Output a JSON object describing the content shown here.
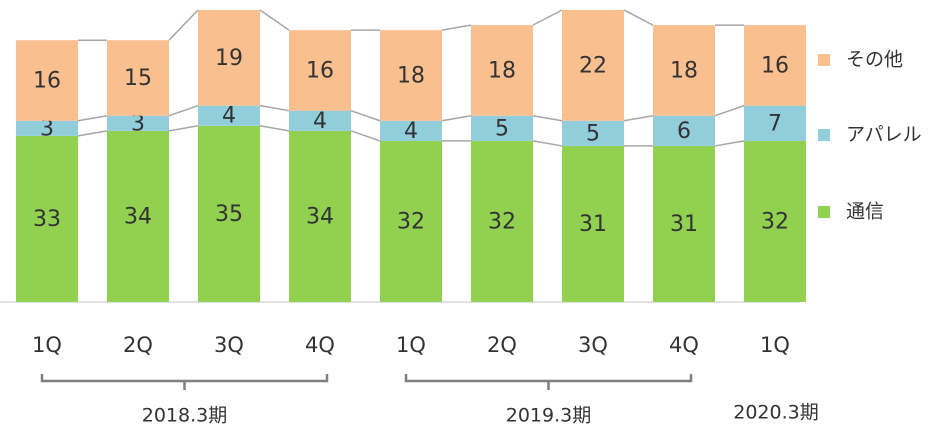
{
  "chart_data": {
    "type": "stacked_bar",
    "groups": [
      {
        "label": "2018.3期",
        "categories": [
          "1Q",
          "2Q",
          "3Q",
          "4Q"
        ]
      },
      {
        "label": "2019.3期",
        "categories": [
          "1Q",
          "2Q",
          "3Q",
          "4Q"
        ]
      },
      {
        "label": "2020.3期",
        "categories": [
          "1Q"
        ]
      }
    ],
    "series": [
      {
        "name": "通信",
        "color": "#92d050",
        "values": [
          33,
          34,
          35,
          34,
          32,
          32,
          31,
          31,
          32
        ]
      },
      {
        "name": "アパレル",
        "color": "#92cddc",
        "values": [
          3,
          3,
          4,
          4,
          4,
          5,
          5,
          6,
          7
        ]
      },
      {
        "name": "その他",
        "color": "#fabf8f",
        "values": [
          16,
          15,
          19,
          16,
          18,
          18,
          22,
          18,
          16
        ]
      }
    ]
  }
}
